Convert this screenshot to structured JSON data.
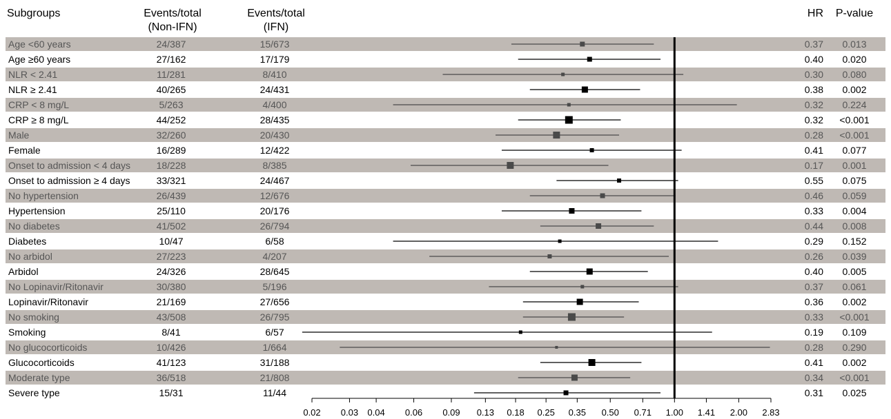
{
  "headers": {
    "subgroups": "Subgroups",
    "events_nonifn_l1": "Events/total",
    "events_nonifn_l2": "(Non-IFN)",
    "events_ifn_l1": "Events/total",
    "events_ifn_l2": "(IFN)",
    "hr": "HR",
    "pvalue": "P-value"
  },
  "chart_data": {
    "type": "forest",
    "x_scale": "log",
    "xlim": [
      0.02,
      2.83
    ],
    "reference_line": 1.0,
    "xticks": [
      "0.02",
      "0.03",
      "0.04",
      "0.06",
      "0.09",
      "0.13",
      "0.18",
      "0.25",
      "0.35",
      "0.50",
      "0.71",
      "1.00",
      "1.41",
      "2.00",
      "2.83"
    ],
    "colors": {
      "shaded_row": "#bfb9b4",
      "shaded_mark": "#4a4a4a",
      "plain_mark": "#000000"
    },
    "rows": [
      {
        "label": "Age <60 years",
        "nonifn": "24/387",
        "ifn": "15/673",
        "hr_text": "0.37",
        "p": "0.013",
        "hr": 0.37,
        "lo": 0.172,
        "hi": 0.8,
        "shaded": true,
        "size": 7
      },
      {
        "label": "Age ≥60 years",
        "nonifn": "27/162",
        "ifn": "17/179",
        "hr_text": "0.40",
        "p": "0.020",
        "hr": 0.4,
        "lo": 0.185,
        "hi": 0.86,
        "shaded": false,
        "size": 7
      },
      {
        "label": "NLR < 2.41",
        "nonifn": "11/281",
        "ifn": "8/410",
        "hr_text": "0.30",
        "p": "0.080",
        "hr": 0.3,
        "lo": 0.082,
        "hi": 1.1,
        "shaded": true,
        "size": 5
      },
      {
        "label": "NLR ≥ 2.41",
        "nonifn": "40/265",
        "ifn": "24/431",
        "hr_text": "0.38",
        "p": "0.002",
        "hr": 0.38,
        "lo": 0.21,
        "hi": 0.69,
        "shaded": false,
        "size": 9
      },
      {
        "label": "CRP < 8 mg/L",
        "nonifn": "5/263",
        "ifn": "4/400",
        "hr_text": "0.32",
        "p": "0.224",
        "hr": 0.32,
        "lo": 0.048,
        "hi": 1.96,
        "shaded": true,
        "size": 5
      },
      {
        "label": "CRP ≥ 8 mg/L",
        "nonifn": "44/252",
        "ifn": "28/435",
        "hr_text": "0.32",
        "p": "<0.001",
        "hr": 0.32,
        "lo": 0.185,
        "hi": 0.56,
        "shaded": false,
        "size": 11
      },
      {
        "label": "Male",
        "nonifn": "32/260",
        "ifn": "20/430",
        "hr_text": "0.28",
        "p": "<0.001",
        "hr": 0.28,
        "lo": 0.145,
        "hi": 0.55,
        "shaded": true,
        "size": 10
      },
      {
        "label": "Female",
        "nonifn": "16/289",
        "ifn": "12/422",
        "hr_text": "0.41",
        "p": "0.077",
        "hr": 0.41,
        "lo": 0.155,
        "hi": 1.08,
        "shaded": false,
        "size": 6
      },
      {
        "label": "Onset to admission < 4 days",
        "nonifn": "18/228",
        "ifn": "8/385",
        "hr_text": "0.17",
        "p": "0.001",
        "hr": 0.17,
        "lo": 0.058,
        "hi": 0.49,
        "shaded": true,
        "size": 10
      },
      {
        "label": "Onset to admission ≥ 4 days",
        "nonifn": "33/321",
        "ifn": "24/467",
        "hr_text": "0.55",
        "p": "0.075",
        "hr": 0.55,
        "lo": 0.28,
        "hi": 1.04,
        "shaded": false,
        "size": 6
      },
      {
        "label": "No hypertension",
        "nonifn": "26/439",
        "ifn": "12/676",
        "hr_text": "0.46",
        "p": "0.059",
        "hr": 0.46,
        "lo": 0.21,
        "hi": 1.01,
        "shaded": true,
        "size": 7
      },
      {
        "label": "Hypertension",
        "nonifn": "25/110",
        "ifn": "20/176",
        "hr_text": "0.33",
        "p": "0.004",
        "hr": 0.33,
        "lo": 0.155,
        "hi": 0.7,
        "shaded": false,
        "size": 8
      },
      {
        "label": "No diabetes",
        "nonifn": "41/502",
        "ifn": "26/794",
        "hr_text": "0.44",
        "p": "0.008",
        "hr": 0.44,
        "lo": 0.235,
        "hi": 0.8,
        "shaded": true,
        "size": 8
      },
      {
        "label": "Diabetes",
        "nonifn": "10/47",
        "ifn": "6/58",
        "hr_text": "0.29",
        "p": "0.152",
        "hr": 0.29,
        "lo": 0.048,
        "hi": 1.6,
        "shaded": false,
        "size": 5
      },
      {
        "label": "No arbidol",
        "nonifn": "27/223",
        "ifn": "4/207",
        "hr_text": "0.26",
        "p": "0.039",
        "hr": 0.26,
        "lo": 0.071,
        "hi": 0.94,
        "shaded": true,
        "size": 6
      },
      {
        "label": "Arbidol",
        "nonifn": "24/326",
        "ifn": "28/645",
        "hr_text": "0.40",
        "p": "0.005",
        "hr": 0.4,
        "lo": 0.21,
        "hi": 0.75,
        "shaded": false,
        "size": 9
      },
      {
        "label": "No Lopinavir/Ritonavir",
        "nonifn": "30/380",
        "ifn": "5/196",
        "hr_text": "0.37",
        "p": "0.061",
        "hr": 0.37,
        "lo": 0.135,
        "hi": 1.04,
        "shaded": true,
        "size": 5
      },
      {
        "label": "Lopinavir/Ritonavir",
        "nonifn": "21/169",
        "ifn": "27/656",
        "hr_text": "0.36",
        "p": "0.002",
        "hr": 0.36,
        "lo": 0.195,
        "hi": 0.68,
        "shaded": false,
        "size": 9
      },
      {
        "label": "No smoking",
        "nonifn": "43/508",
        "ifn": "26/795",
        "hr_text": "0.33",
        "p": "<0.001",
        "hr": 0.33,
        "lo": 0.195,
        "hi": 0.58,
        "shaded": true,
        "size": 11
      },
      {
        "label": "Smoking",
        "nonifn": "8/41",
        "ifn": "6/57",
        "hr_text": "0.19",
        "p": "0.109",
        "hr": 0.19,
        "lo": 0.018,
        "hi": 1.5,
        "shaded": false,
        "size": 5
      },
      {
        "label": "No glucocorticoids",
        "nonifn": "10/426",
        "ifn": "1/664",
        "hr_text": "0.28",
        "p": "0.290",
        "hr": 0.28,
        "lo": 0.027,
        "hi": 2.8,
        "shaded": true,
        "size": 4
      },
      {
        "label": "Glucocorticoids",
        "nonifn": "41/123",
        "ifn": "31/188",
        "hr_text": "0.41",
        "p": "0.002",
        "hr": 0.41,
        "lo": 0.235,
        "hi": 0.7,
        "shaded": false,
        "size": 10
      },
      {
        "label": "Moderate type",
        "nonifn": "36/518",
        "ifn": "21/808",
        "hr_text": "0.34",
        "p": "<0.001",
        "hr": 0.34,
        "lo": 0.185,
        "hi": 0.62,
        "shaded": true,
        "size": 9
      },
      {
        "label": "Severe type",
        "nonifn": "15/31",
        "ifn": "11/44",
        "hr_text": "0.31",
        "p": "0.025",
        "hr": 0.31,
        "lo": 0.115,
        "hi": 0.86,
        "shaded": false,
        "size": 7
      }
    ]
  }
}
